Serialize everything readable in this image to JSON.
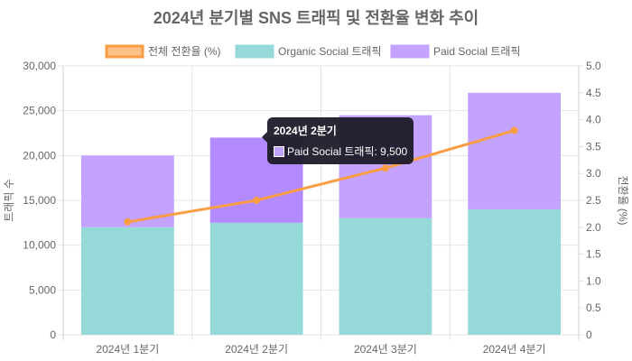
{
  "chart_data": {
    "type": "bar",
    "stacked": true,
    "title": "2024년 분기별 SNS 트래픽 및 전환율 변화 추이",
    "categories": [
      "2024년 1분기",
      "2024년 2분기",
      "2024년 3분기",
      "2024년 4분기"
    ],
    "series": [
      {
        "name": "전체 전환율 (%)",
        "type": "line",
        "axis": "right",
        "color": "#f99d45",
        "values": [
          2.1,
          2.5,
          3.1,
          3.8
        ]
      },
      {
        "name": "Organic Social 트래픽",
        "type": "bar",
        "axis": "left",
        "color": "#96d9d9",
        "values": [
          12000,
          12500,
          13000,
          14000
        ]
      },
      {
        "name": "Paid Social 트래픽",
        "type": "bar",
        "axis": "left",
        "color": "#c4a3ff",
        "values": [
          8000,
          9500,
          11500,
          13000
        ]
      }
    ],
    "ylabel": "트래픽 수",
    "y2label": "전환율 (%)",
    "ylim": [
      0,
      30000
    ],
    "y2lim": [
      0,
      5
    ],
    "yticks": [
      "0",
      "5,000",
      "10,000",
      "15,000",
      "20,000",
      "25,000",
      "30,000"
    ],
    "y2ticks": [
      "0",
      "0.5",
      "1.0",
      "1.5",
      "2.0",
      "2.5",
      "3.0",
      "3.5",
      "4.0",
      "4.5",
      "5.0"
    ],
    "grid": true,
    "legend": "top",
    "highlight_color": "#b38aff"
  },
  "tooltip": {
    "title": "2024년 2분기",
    "label": "Paid Social 트래픽: 9,500"
  }
}
